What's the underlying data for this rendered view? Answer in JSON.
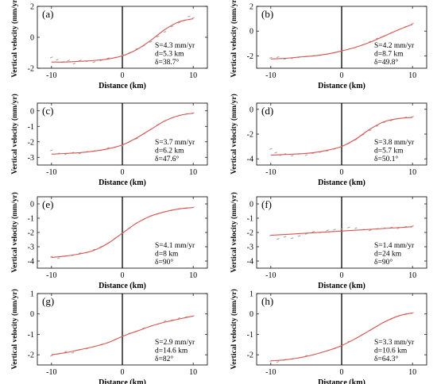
{
  "figure": {
    "xlabel": "Distance (km)",
    "ylabel": "Vertical velocity (mm/yr)",
    "colors": {
      "model_line": "#d9534f",
      "observed_points": "#a8a8a8",
      "fault_line": "#000000"
    }
  },
  "chart_data": [
    {
      "type": "line",
      "panel": "(a)",
      "xlim": [
        -12,
        12
      ],
      "ylim": [
        -2,
        2
      ],
      "yticks": [
        -2,
        0,
        2
      ],
      "xticks": [
        -10,
        0,
        10
      ],
      "annotations": [
        "S=4.3 mm/yr",
        "d=5.3 km",
        "δ=38.7°"
      ],
      "series": [
        {
          "x": [
            -10,
            -8,
            -6,
            -4,
            -2,
            0,
            2,
            4,
            6,
            8,
            10
          ],
          "y": [
            -1.6,
            -1.6,
            -1.55,
            -1.5,
            -1.4,
            -1.2,
            -0.8,
            -0.2,
            0.5,
            1.0,
            1.2
          ]
        },
        {
          "x": [
            -10,
            -9.2,
            -8.4,
            -7.6,
            -6.8,
            -6,
            -5,
            -4,
            -3,
            -2,
            -1,
            0,
            1,
            2,
            3,
            4,
            5,
            6,
            7,
            8,
            8.8,
            9.4,
            10
          ],
          "y": [
            -1.3,
            -1.45,
            -1.6,
            -1.5,
            -1.7,
            -1.5,
            -1.55,
            -1.6,
            -1.5,
            -1.35,
            -1.3,
            -1.15,
            -1.0,
            -0.75,
            -0.55,
            -0.3,
            0.05,
            0.35,
            0.7,
            0.95,
            1.1,
            1.35,
            1.25
          ]
        }
      ]
    },
    {
      "type": "line",
      "panel": "(b)",
      "xlim": [
        -12,
        12
      ],
      "ylim": [
        -3,
        2
      ],
      "yticks": [
        -2,
        0,
        2
      ],
      "xticks": [
        -10,
        0,
        10
      ],
      "annotations": [
        "S=4.2 mm/yr",
        "d=8.7 km",
        "δ=49.8°"
      ],
      "series": [
        {
          "x": [
            -10,
            -8,
            -6,
            -4,
            -2,
            0,
            2,
            4,
            6,
            8,
            10
          ],
          "y": [
            -2.25,
            -2.2,
            -2.1,
            -2.0,
            -1.85,
            -1.6,
            -1.3,
            -0.9,
            -0.4,
            0.1,
            0.55
          ]
        },
        {
          "x": [
            -10,
            -9,
            -8,
            -7,
            -6,
            -5,
            -4,
            -3,
            -2,
            -1,
            0,
            1,
            2,
            3,
            4,
            5,
            6,
            7,
            8,
            9,
            10
          ],
          "y": [
            -2.15,
            -2.1,
            -2.25,
            -2.2,
            -2.1,
            -2.05,
            -2.0,
            -1.95,
            -1.85,
            -1.75,
            -1.6,
            -1.45,
            -1.3,
            -1.1,
            -0.85,
            -0.6,
            -0.4,
            -0.15,
            0.1,
            0.35,
            0.6
          ]
        }
      ]
    },
    {
      "type": "line",
      "panel": "(c)",
      "xlim": [
        -12,
        12
      ],
      "ylim": [
        -3.5,
        0.5
      ],
      "yticks": [
        -3,
        -2,
        -1,
        0
      ],
      "xticks": [
        -10,
        0,
        10
      ],
      "annotations": [
        "S=3.7 mm/yr",
        "d=6.2 km",
        "δ=47.6°"
      ],
      "series": [
        {
          "x": [
            -10,
            -8,
            -6,
            -4,
            -2,
            0,
            2,
            4,
            6,
            8,
            10
          ],
          "y": [
            -2.8,
            -2.75,
            -2.7,
            -2.6,
            -2.45,
            -2.2,
            -1.75,
            -1.2,
            -0.65,
            -0.3,
            -0.15
          ]
        },
        {
          "x": [
            -10,
            -9,
            -8,
            -7,
            -6,
            -5,
            -4,
            -3,
            -2,
            -1,
            0,
            1,
            2,
            3,
            4,
            5,
            6,
            7,
            8,
            9,
            10
          ],
          "y": [
            -2.55,
            -2.75,
            -2.8,
            -2.7,
            -2.75,
            -2.65,
            -2.6,
            -2.55,
            -2.4,
            -2.35,
            -2.25,
            -2.0,
            -1.8,
            -1.5,
            -1.2,
            -0.9,
            -0.65,
            -0.45,
            -0.3,
            -0.2,
            -0.15
          ]
        }
      ]
    },
    {
      "type": "line",
      "panel": "(d)",
      "xlim": [
        -12,
        12
      ],
      "ylim": [
        -4.5,
        0.5
      ],
      "yticks": [
        -4,
        -2,
        0
      ],
      "xticks": [
        -10,
        0,
        10
      ],
      "annotations": [
        "S=3.8 mm/yr",
        "d=5.7 km",
        "δ=50.1°"
      ],
      "series": [
        {
          "x": [
            -10,
            -8,
            -6,
            -4,
            -2,
            0,
            2,
            4,
            6,
            8,
            10
          ],
          "y": [
            -3.7,
            -3.65,
            -3.6,
            -3.5,
            -3.3,
            -3.0,
            -2.4,
            -1.6,
            -1.0,
            -0.75,
            -0.65
          ]
        },
        {
          "x": [
            -10,
            -9.3,
            -8.6,
            -8,
            -7,
            -6,
            -5,
            -4,
            -3,
            -2,
            -1,
            0,
            1,
            2,
            3,
            4,
            5,
            6,
            7,
            8,
            9,
            10
          ],
          "y": [
            -3.2,
            -3.5,
            -3.7,
            -3.6,
            -3.75,
            -3.6,
            -3.7,
            -3.55,
            -3.45,
            -3.35,
            -3.2,
            -3.0,
            -2.75,
            -2.45,
            -2.05,
            -1.7,
            -1.35,
            -1.05,
            -0.9,
            -0.75,
            -0.65,
            -0.6
          ]
        }
      ]
    },
    {
      "type": "line",
      "panel": "(e)",
      "xlim": [
        -12,
        12
      ],
      "ylim": [
        -4.5,
        0.5
      ],
      "yticks": [
        -4,
        -3,
        -2,
        -1,
        0
      ],
      "xticks": [
        -10,
        0,
        10
      ],
      "annotations": [
        "S=4.1 mm/yr",
        "d=8 km",
        "δ=90°"
      ],
      "series": [
        {
          "x": [
            -10,
            -8,
            -6,
            -4,
            -2,
            0,
            2,
            4,
            6,
            8,
            10
          ],
          "y": [
            -3.75,
            -3.65,
            -3.5,
            -3.25,
            -2.75,
            -2.05,
            -1.35,
            -0.85,
            -0.55,
            -0.35,
            -0.25
          ]
        },
        {
          "x": [
            -10,
            -9,
            -8,
            -7,
            -6,
            -5,
            -4,
            -3,
            -2,
            -1,
            0,
            1,
            2,
            3,
            4,
            5,
            6,
            7,
            8,
            9,
            10
          ],
          "y": [
            -3.7,
            -3.8,
            -3.65,
            -3.6,
            -3.45,
            -3.4,
            -3.2,
            -3.0,
            -2.75,
            -2.4,
            -2.05,
            -1.7,
            -1.35,
            -1.1,
            -0.85,
            -0.7,
            -0.55,
            -0.45,
            -0.35,
            -0.3,
            -0.25
          ]
        }
      ]
    },
    {
      "type": "line",
      "panel": "(f)",
      "xlim": [
        -12,
        12
      ],
      "ylim": [
        -4.5,
        0.5
      ],
      "yticks": [
        -4,
        -3,
        -2,
        -1,
        0
      ],
      "xticks": [
        -10,
        0,
        10
      ],
      "annotations": [
        "S=1.4 mm/yr",
        "d=24 km",
        "δ=90°"
      ],
      "series": [
        {
          "x": [
            -10,
            -5,
            0,
            5,
            10
          ],
          "y": [
            -2.2,
            -2.05,
            -1.9,
            -1.75,
            -1.6
          ]
        },
        {
          "x": [
            -10,
            -9,
            -8,
            -7,
            -6,
            -5,
            -4,
            -3,
            -2,
            -1,
            0,
            1,
            2,
            3,
            4,
            5,
            6,
            7,
            8,
            9,
            10
          ],
          "y": [
            -2.2,
            -2.45,
            -2.3,
            -2.4,
            -2.25,
            -2.1,
            -1.95,
            -2.0,
            -1.85,
            -1.8,
            -1.75,
            -1.65,
            -1.7,
            -1.8,
            -1.85,
            -1.75,
            -1.7,
            -1.65,
            -1.7,
            -1.6,
            -1.55
          ]
        }
      ]
    },
    {
      "type": "line",
      "panel": "(g)",
      "xlim": [
        -12,
        12
      ],
      "ylim": [
        -2.5,
        1
      ],
      "yticks": [
        -2,
        -1,
        0,
        1
      ],
      "xticks": [
        -10,
        0,
        10
      ],
      "annotations": [
        "S=2.9 mm/yr",
        "d=14.6 km",
        "δ=82°"
      ],
      "series": [
        {
          "x": [
            -10,
            -8,
            -6,
            -4,
            -2,
            0,
            2,
            4,
            6,
            8,
            10
          ],
          "y": [
            -2.0,
            -1.9,
            -1.75,
            -1.6,
            -1.4,
            -1.1,
            -0.85,
            -0.6,
            -0.4,
            -0.25,
            -0.1
          ]
        },
        {
          "x": [
            -10,
            -9,
            -8,
            -7,
            -6,
            -5,
            -4,
            -3,
            -2,
            -1,
            0,
            1,
            2,
            3,
            4,
            5,
            6,
            7,
            8,
            9,
            10
          ],
          "y": [
            -2.05,
            -1.95,
            -1.85,
            -1.9,
            -1.75,
            -1.7,
            -1.6,
            -1.5,
            -1.4,
            -1.25,
            -1.1,
            -0.95,
            -0.85,
            -0.7,
            -0.6,
            -0.5,
            -0.35,
            -0.3,
            -0.2,
            -0.15,
            -0.1
          ]
        }
      ]
    },
    {
      "type": "line",
      "panel": "(h)",
      "xlim": [
        -12,
        12
      ],
      "ylim": [
        -2.5,
        1
      ],
      "yticks": [
        -2,
        -1,
        0,
        1
      ],
      "xticks": [
        -10,
        0,
        10
      ],
      "annotations": [
        "S=3.3 mm/yr",
        "d=10.6 km",
        "δ=64.3°"
      ],
      "series": [
        {
          "x": [
            -10,
            -8,
            -6,
            -4,
            -2,
            0,
            2,
            4,
            6,
            8,
            10
          ],
          "y": [
            -2.3,
            -2.25,
            -2.15,
            -2.0,
            -1.8,
            -1.55,
            -1.2,
            -0.8,
            -0.4,
            -0.1,
            0.05
          ]
        },
        {
          "x": [
            -10,
            -9,
            -8,
            -7,
            -6,
            -5,
            -4,
            -3,
            -2,
            -1,
            0,
            1,
            2,
            3,
            4,
            5,
            6,
            7,
            8,
            9,
            10
          ],
          "y": [
            -2.3,
            -2.35,
            -2.25,
            -2.2,
            -2.15,
            -2.05,
            -2.0,
            -1.9,
            -1.8,
            -1.7,
            -1.55,
            -1.35,
            -1.2,
            -1.0,
            -0.8,
            -0.6,
            -0.4,
            -0.25,
            -0.1,
            0.0,
            0.05
          ]
        }
      ]
    }
  ]
}
